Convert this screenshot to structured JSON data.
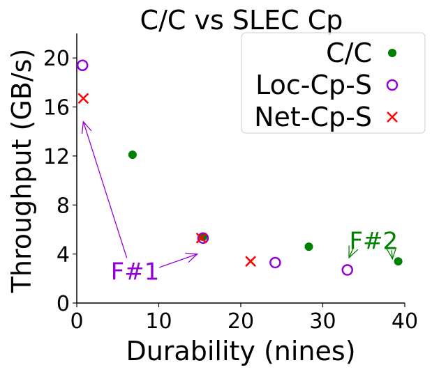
{
  "chart_data": {
    "type": "scatter",
    "title": "C/C vs SLEC Cp",
    "xlabel": "Durability (nines)",
    "ylabel": "Throughput (GB/s)",
    "xlim": [
      0,
      40
    ],
    "ylim": [
      0,
      22
    ],
    "xticks": [
      0,
      10,
      20,
      30,
      40
    ],
    "yticks": [
      0,
      4,
      8,
      12,
      16,
      20
    ],
    "grid": false,
    "legend_position": "top-right",
    "series": [
      {
        "name": "C/C",
        "marker": "filled-circle",
        "color": "#008000",
        "points": [
          [
            6.8,
            12.1
          ],
          [
            15.4,
            5.4
          ],
          [
            28.3,
            4.6
          ],
          [
            39.2,
            3.4
          ]
        ]
      },
      {
        "name": "Loc-Cp-S",
        "marker": "hollow-circle",
        "color": "#9400D3",
        "points": [
          [
            0.7,
            19.4
          ],
          [
            15.4,
            5.3
          ],
          [
            24.2,
            3.3
          ],
          [
            33.0,
            2.7
          ]
        ]
      },
      {
        "name": "Net-Cp-S",
        "marker": "x",
        "color": "#FF0000",
        "points": [
          [
            0.8,
            16.7
          ],
          [
            15.2,
            5.3
          ],
          [
            21.2,
            3.4
          ]
        ]
      }
    ],
    "annotations": [
      {
        "text": "F#1",
        "color": "#9400D3",
        "at": [
          7.1,
          2.6
        ],
        "arrows_to": [
          [
            0.8,
            14.8
          ],
          [
            14.7,
            4.0
          ]
        ]
      },
      {
        "text": "F#2",
        "color": "#008000",
        "at": [
          36.2,
          5.1
        ],
        "arrows_to": [
          [
            33.2,
            3.7
          ],
          [
            38.5,
            3.6
          ]
        ]
      }
    ]
  }
}
